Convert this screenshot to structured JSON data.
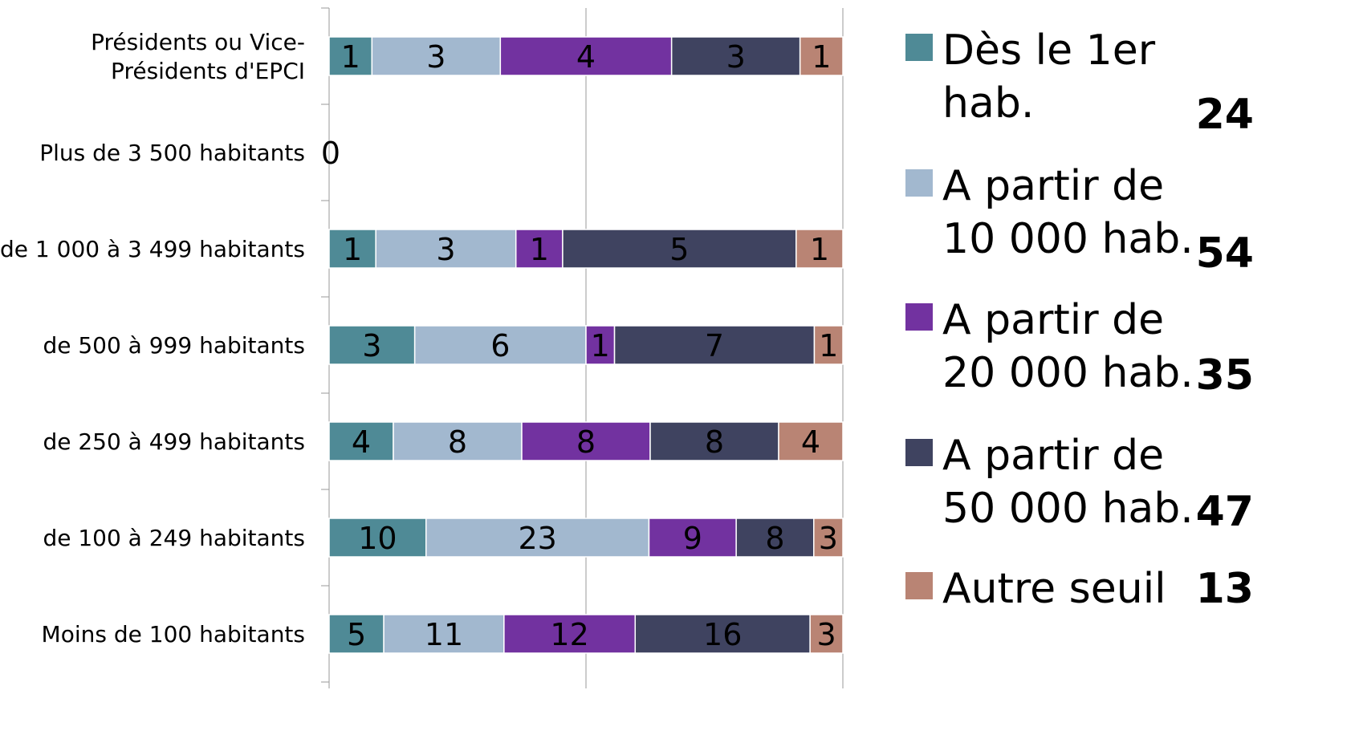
{
  "chart_data": {
    "type": "bar",
    "orientation": "horizontal",
    "stacked": "percent",
    "categories": [
      "Présidents ou Vice-Présidents d'EPCI",
      "Plus de 3 500 habitants",
      "de 1 000 à 3 499 habitants",
      "de 500 à 999 habitants",
      "de 250 à 499 habitants",
      "de 100 à 249 habitants",
      "Moins de 100 habitants"
    ],
    "category_lines": [
      [
        "Présidents ou Vice-",
        "Présidents d'EPCI"
      ],
      [
        "Plus de 3 500 habitants"
      ],
      [
        "de 1 000 à 3 499 habitants"
      ],
      [
        "de 500 à 999 habitants"
      ],
      [
        "de 250 à 499 habitants"
      ],
      [
        "de 100 à 249 habitants"
      ],
      [
        "Moins de 100 habitants"
      ]
    ],
    "series": [
      {
        "name": "Dès le 1er hab.",
        "legend_lines": [
          "Dès le 1er",
          "hab."
        ],
        "total": "24",
        "color": "#4f8a96",
        "values": [
          1,
          0,
          1,
          3,
          4,
          10,
          5
        ]
      },
      {
        "name": "A partir de 10 000 hab.",
        "legend_lines": [
          "A partir de",
          "10 000 hab."
        ],
        "total": "54",
        "color": "#a2b8cf",
        "values": [
          3,
          0,
          3,
          6,
          8,
          23,
          11
        ]
      },
      {
        "name": "A partir de 20 000 hab.",
        "legend_lines": [
          "A partir de",
          "20 000 hab."
        ],
        "total": "35",
        "color": "#7232a0",
        "values": [
          4,
          0,
          1,
          1,
          8,
          9,
          12
        ]
      },
      {
        "name": "A partir de 50 000 hab.",
        "legend_lines": [
          "A partir de",
          "50 000 hab."
        ],
        "total": "47",
        "color": "#3f4360",
        "values": [
          3,
          0,
          5,
          7,
          8,
          8,
          16
        ]
      },
      {
        "name": "Autre seuil",
        "legend_lines": [
          "Autre seuil"
        ],
        "total": "13",
        "color": "#b98474",
        "values": [
          1,
          0,
          1,
          1,
          4,
          3,
          3
        ]
      }
    ],
    "empty_category_label": "0",
    "grid": true,
    "legend_position": "right"
  }
}
